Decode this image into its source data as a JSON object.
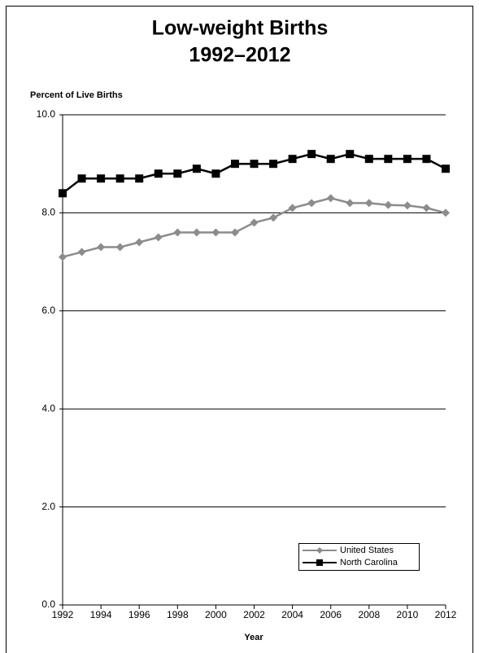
{
  "chart_data": {
    "type": "line",
    "title": "Low-weight Births",
    "subtitle": "1992–2012",
    "y_label": "Percent of Live Births",
    "x_label": "Year",
    "x": [
      1992,
      1993,
      1994,
      1995,
      1996,
      1997,
      1998,
      1999,
      2000,
      2001,
      2002,
      2003,
      2004,
      2005,
      2006,
      2007,
      2008,
      2009,
      2010,
      2011,
      2012
    ],
    "series": [
      {
        "name": "United States",
        "color": "#8c8c8c",
        "marker": "diamond",
        "values": [
          7.1,
          7.2,
          7.3,
          7.3,
          7.4,
          7.5,
          7.6,
          7.6,
          7.6,
          7.6,
          7.8,
          7.9,
          8.1,
          8.2,
          8.3,
          8.2,
          8.2,
          8.16,
          8.15,
          8.1,
          8.0
        ]
      },
      {
        "name": "North Carolina",
        "color": "#000000",
        "marker": "square",
        "values": [
          8.4,
          8.7,
          8.7,
          8.7,
          8.7,
          8.8,
          8.8,
          8.9,
          8.8,
          9.0,
          9.0,
          9.0,
          9.1,
          9.2,
          9.1,
          9.2,
          9.1,
          9.1,
          9.1,
          9.1,
          8.9
        ]
      }
    ],
    "xlim": [
      1992,
      2012
    ],
    "xticks": [
      1992,
      1994,
      1996,
      1998,
      2000,
      2002,
      2004,
      2006,
      2008,
      2010,
      2012
    ],
    "ylim": [
      0,
      10
    ],
    "yticks": [
      {
        "value": 0,
        "label": "0.0"
      },
      {
        "value": 2,
        "label": "2.0"
      },
      {
        "value": 4,
        "label": "4.0"
      },
      {
        "value": 6,
        "label": "6.0"
      },
      {
        "value": 8,
        "label": "8.0"
      },
      {
        "value": 10,
        "label": "10.0"
      }
    ],
    "grid": true,
    "legend_position": "lower right"
  }
}
